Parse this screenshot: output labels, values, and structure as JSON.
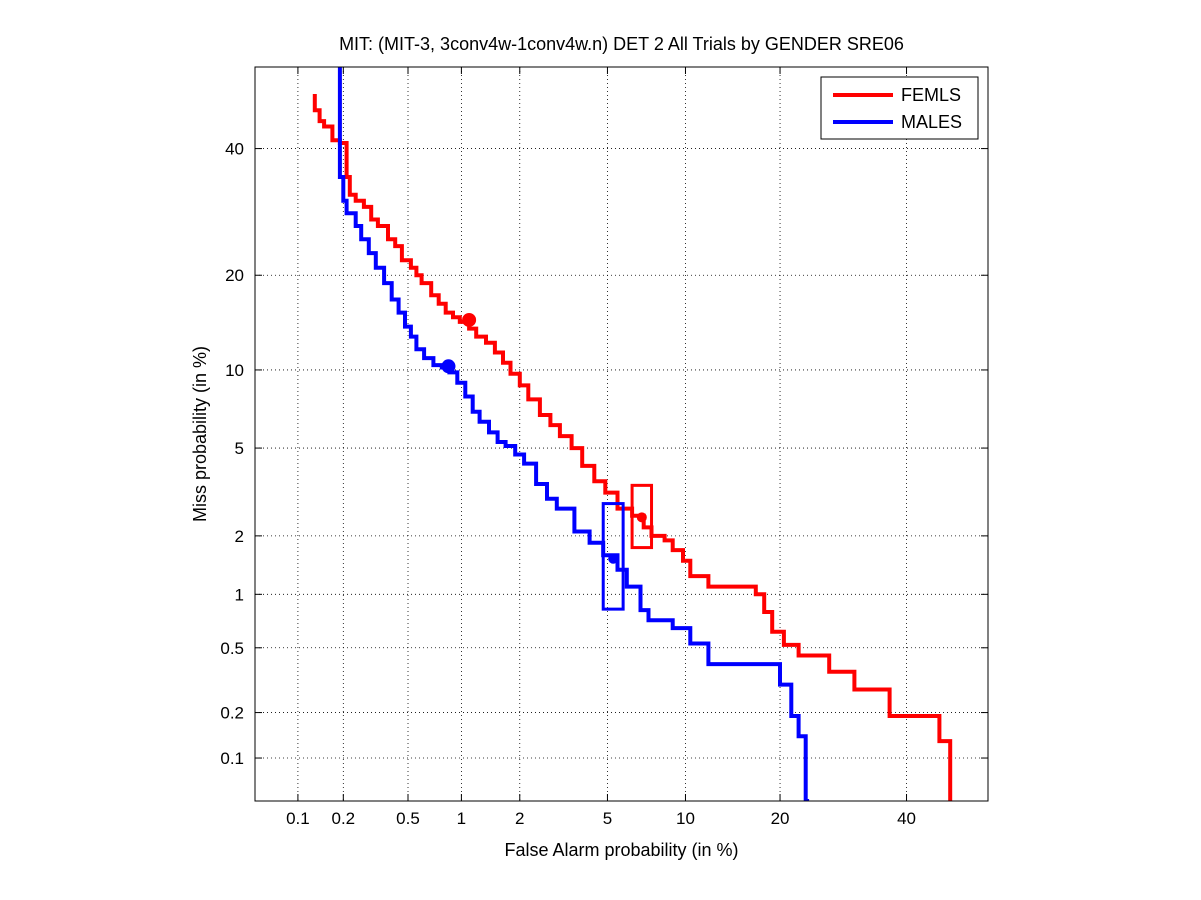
{
  "chart_data": {
    "type": "line",
    "title": "MIT: (MIT-3, 3conv4w-1conv4w.n) DET 2 All Trials by GENDER SRE06",
    "xlabel": "False Alarm probability (in %)",
    "ylabel": "Miss probability (in %)",
    "scale": "normal-deviate (probit) on both axes",
    "xlim": [
      0.05,
      55
    ],
    "ylim": [
      0.05,
      55
    ],
    "x_ticks": [
      0.1,
      0.2,
      0.5,
      1,
      2,
      5,
      10,
      20,
      40
    ],
    "x_tick_labels": [
      "0.1",
      "0.2",
      "0.5",
      "1",
      "2",
      "5",
      "10",
      "20",
      "40"
    ],
    "y_ticks": [
      0.1,
      0.2,
      0.5,
      1,
      2,
      5,
      10,
      20,
      40
    ],
    "y_tick_labels": [
      "0.1",
      "0.2",
      "0.5",
      "1",
      "2",
      "5",
      "10",
      "20",
      "40"
    ],
    "grid": true,
    "legend": {
      "position": "top-right"
    },
    "series": [
      {
        "name": "FEMLS",
        "color": "#ff0000",
        "x": [
          0.13,
          0.14,
          0.15,
          0.17,
          0.19,
          0.21,
          0.22,
          0.24,
          0.27,
          0.3,
          0.33,
          0.38,
          0.42,
          0.46,
          0.52,
          0.56,
          0.6,
          0.68,
          0.75,
          0.82,
          0.9,
          0.98,
          1.1,
          1.2,
          1.35,
          1.5,
          1.65,
          1.8,
          2.0,
          2.2,
          2.5,
          2.8,
          3.1,
          3.5,
          3.9,
          4.4,
          4.9,
          5.5,
          6.3,
          7.0,
          7.5,
          8.4,
          9.0,
          9.8,
          10.4,
          12.0,
          13.5,
          17.0,
          18.0,
          19.0,
          20.5,
          22.5,
          27.0,
          31.0,
          37.0,
          46.0,
          48.0,
          48.0
        ],
        "y": [
          50,
          47,
          45,
          44,
          41.5,
          41,
          35,
          32,
          31,
          30,
          28,
          27,
          25,
          24,
          22,
          21,
          20,
          19,
          17.5,
          16.5,
          15.5,
          15,
          14.5,
          13.8,
          13,
          12.4,
          11.5,
          10.6,
          9.7,
          8.8,
          7.8,
          6.8,
          6.2,
          5.6,
          5.0,
          4.2,
          3.6,
          3.2,
          2.7,
          2.5,
          2.2,
          2.0,
          1.9,
          1.7,
          1.5,
          1.25,
          1.1,
          1.1,
          1.0,
          0.8,
          0.62,
          0.52,
          0.45,
          0.36,
          0.28,
          0.19,
          0.13,
          0.05
        ],
        "operating_point": {
          "x": 1.1,
          "y": 14.7
        },
        "confidence_box": {
          "x": [
            6.3,
            7.5
          ],
          "y": [
            1.75,
            3.45
          ]
        }
      },
      {
        "name": "MALES",
        "color": "#0000ff",
        "x": [
          0.19,
          0.19,
          0.2,
          0.21,
          0.24,
          0.26,
          0.29,
          0.32,
          0.36,
          0.4,
          0.44,
          0.48,
          0.52,
          0.56,
          0.62,
          0.7,
          0.78,
          0.86,
          0.95,
          1.05,
          1.15,
          1.25,
          1.4,
          1.55,
          1.7,
          1.9,
          2.1,
          2.4,
          2.7,
          3.0,
          3.6,
          4.2,
          4.8,
          5.5,
          6.0,
          6.8,
          7.3,
          9.0,
          10.4,
          12.0,
          14.5,
          20.0,
          21.5,
          22.5,
          23.5,
          24.0
        ],
        "y": [
          55,
          42,
          35,
          31,
          29,
          27,
          25,
          23,
          21,
          19,
          17,
          15.5,
          14,
          13,
          11.8,
          11,
          10.4,
          10.2,
          9.8,
          9.0,
          8.0,
          7.0,
          6.4,
          5.8,
          5.3,
          5.1,
          4.7,
          4.3,
          3.5,
          3.0,
          2.7,
          2.1,
          1.85,
          1.6,
          1.35,
          1.1,
          0.82,
          0.72,
          0.65,
          0.53,
          0.4,
          0.4,
          0.3,
          0.19,
          0.14,
          0.05
        ],
        "operating_point": {
          "x": 0.85,
          "y": 10.3
        },
        "confidence_box": {
          "x": [
            4.8,
            5.8
          ],
          "y": [
            0.83,
            2.85
          ]
        }
      }
    ]
  }
}
